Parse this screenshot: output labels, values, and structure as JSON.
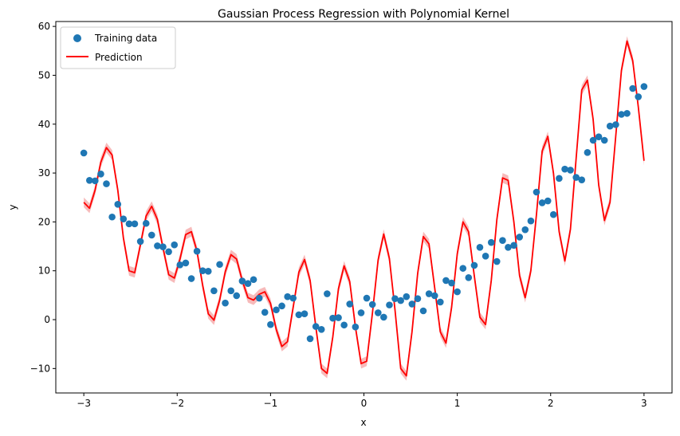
{
  "chart_data": {
    "type": "scatter",
    "title": "Gaussian Process Regression with Polynomial Kernel",
    "xlabel": "x",
    "ylabel": "y",
    "xlim": [
      -3.3,
      3.3
    ],
    "ylim": [
      -15,
      61
    ],
    "x_ticks": [
      -3,
      -2,
      -1,
      0,
      1,
      2,
      3
    ],
    "x_tick_labels": [
      "−3",
      "−2",
      "−1",
      "0",
      "1",
      "2",
      "3"
    ],
    "y_ticks": [
      -10,
      0,
      10,
      20,
      30,
      40,
      50,
      60
    ],
    "y_tick_labels": [
      "−10",
      "0",
      "10",
      "20",
      "30",
      "40",
      "50",
      "60"
    ],
    "legend_position": "top-left",
    "series": [
      {
        "name": "Training data",
        "kind": "scatter",
        "color": "#1f77b4",
        "x": [
          -3.0,
          -2.939,
          -2.879,
          -2.818,
          -2.758,
          -2.697,
          -2.636,
          -2.576,
          -2.515,
          -2.455,
          -2.394,
          -2.333,
          -2.273,
          -2.212,
          -2.152,
          -2.091,
          -2.03,
          -1.97,
          -1.909,
          -1.848,
          -1.788,
          -1.727,
          -1.667,
          -1.606,
          -1.545,
          -1.485,
          -1.424,
          -1.364,
          -1.303,
          -1.242,
          -1.182,
          -1.121,
          -1.061,
          -1.0,
          -0.939,
          -0.879,
          -0.818,
          -0.758,
          -0.697,
          -0.636,
          -0.576,
          -0.515,
          -0.455,
          -0.394,
          -0.333,
          -0.273,
          -0.212,
          -0.152,
          -0.091,
          -0.03,
          0.03,
          0.091,
          0.152,
          0.212,
          0.273,
          0.333,
          0.394,
          0.455,
          0.515,
          0.576,
          0.636,
          0.697,
          0.758,
          0.818,
          0.879,
          0.939,
          1.0,
          1.061,
          1.121,
          1.182,
          1.242,
          1.303,
          1.364,
          1.424,
          1.485,
          1.545,
          1.606,
          1.667,
          1.727,
          1.788,
          1.848,
          1.909,
          1.97,
          2.03,
          2.091,
          2.152,
          2.212,
          2.273,
          2.333,
          2.394,
          2.455,
          2.515,
          2.576,
          2.636,
          2.697,
          2.758,
          2.818,
          2.879,
          2.939,
          3.0
        ],
        "y": [
          34.1,
          28.5,
          28.4,
          29.8,
          27.8,
          21.0,
          23.6,
          20.6,
          19.6,
          19.6,
          16.0,
          19.7,
          17.3,
          15.1,
          14.9,
          13.9,
          15.3,
          11.2,
          11.6,
          8.4,
          14.0,
          10.0,
          9.9,
          5.9,
          11.3,
          3.4,
          5.9,
          4.9,
          7.9,
          7.4,
          8.2,
          4.4,
          1.5,
          -1.0,
          2.0,
          2.8,
          4.7,
          4.4,
          1.0,
          1.2,
          -3.9,
          -1.4,
          -2.0,
          5.3,
          0.3,
          0.4,
          -1.1,
          3.2,
          -1.5,
          1.4,
          4.4,
          3.1,
          1.4,
          0.5,
          3.0,
          4.3,
          3.9,
          4.7,
          3.2,
          4.3,
          1.8,
          5.3,
          4.9,
          3.6,
          8.0,
          7.5,
          5.7,
          10.5,
          8.6,
          11.1,
          14.8,
          13.0,
          15.8,
          11.9,
          16.2,
          14.8,
          15.2,
          16.9,
          18.4,
          20.2,
          26.1,
          23.9,
          24.3,
          21.5,
          28.9,
          30.8,
          30.6,
          29.1,
          28.6,
          34.2,
          36.7,
          37.4,
          36.7,
          39.6,
          39.9,
          42.0,
          42.2,
          47.3,
          45.6,
          47.7
        ]
      },
      {
        "name": "Prediction",
        "kind": "line",
        "color": "#ff0000",
        "band_color": "#f4a3a3",
        "band_halfwidth": 1.0,
        "x": [
          -3.0,
          -2.939,
          -2.879,
          -2.818,
          -2.758,
          -2.697,
          -2.636,
          -2.576,
          -2.515,
          -2.455,
          -2.394,
          -2.333,
          -2.273,
          -2.212,
          -2.152,
          -2.091,
          -2.03,
          -1.97,
          -1.909,
          -1.848,
          -1.788,
          -1.727,
          -1.667,
          -1.606,
          -1.545,
          -1.485,
          -1.424,
          -1.364,
          -1.303,
          -1.242,
          -1.182,
          -1.121,
          -1.061,
          -1.0,
          -0.939,
          -0.879,
          -0.818,
          -0.758,
          -0.697,
          -0.636,
          -0.576,
          -0.515,
          -0.455,
          -0.394,
          -0.333,
          -0.273,
          -0.212,
          -0.152,
          -0.091,
          -0.03,
          0.03,
          0.091,
          0.152,
          0.212,
          0.273,
          0.333,
          0.394,
          0.455,
          0.515,
          0.576,
          0.636,
          0.697,
          0.758,
          0.818,
          0.879,
          0.939,
          1.0,
          1.061,
          1.121,
          1.182,
          1.242,
          1.303,
          1.364,
          1.424,
          1.485,
          1.545,
          1.606,
          1.667,
          1.727,
          1.788,
          1.848,
          1.909,
          1.97,
          2.03,
          2.091,
          2.152,
          2.212,
          2.273,
          2.333,
          2.394,
          2.455,
          2.515,
          2.576,
          2.636,
          2.697,
          2.758,
          2.818,
          2.879,
          2.939,
          3.0
        ],
        "y": [
          24.0,
          22.8,
          26.5,
          32.2,
          35.2,
          33.7,
          26.5,
          16.7,
          10.0,
          9.6,
          15.3,
          21.2,
          23.2,
          20.5,
          14.7,
          9.2,
          8.5,
          12.4,
          17.4,
          18.0,
          14.0,
          7.0,
          1.2,
          -0.1,
          4.0,
          9.8,
          13.3,
          12.4,
          8.0,
          4.5,
          4.0,
          5.2,
          5.7,
          3.3,
          -2.0,
          -5.5,
          -4.5,
          2.5,
          9.7,
          12.3,
          8.0,
          -1.5,
          -10.0,
          -11.0,
          -3.5,
          6.3,
          11.0,
          7.8,
          -1.5,
          -9.0,
          -8.5,
          1.3,
          12.2,
          17.5,
          12.5,
          2.0,
          -10.0,
          -11.5,
          -2.5,
          9.5,
          17.0,
          15.5,
          6.5,
          -2.5,
          -4.8,
          2.5,
          13.5,
          20.0,
          18.0,
          9.0,
          0.5,
          -1.0,
          8.0,
          20.5,
          29.0,
          28.5,
          20.0,
          9.0,
          4.5,
          10.0,
          21.5,
          34.5,
          37.5,
          30.0,
          18.0,
          12.0,
          18.5,
          33.0,
          47.0,
          49.0,
          41.0,
          27.5,
          20.3,
          24.0,
          37.5,
          51.0,
          57.0,
          53.0,
          43.5,
          32.5
        ]
      }
    ]
  }
}
